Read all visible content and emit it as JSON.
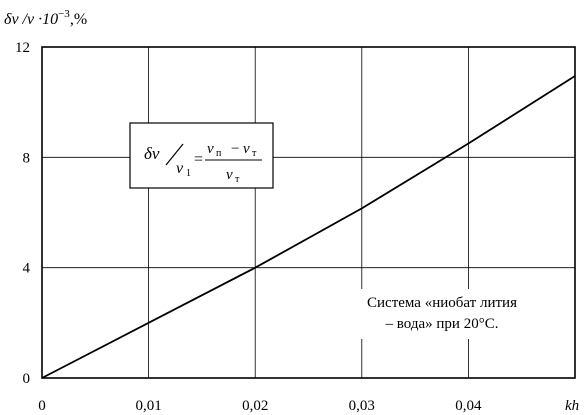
{
  "chart_data": {
    "type": "line",
    "ylabel_parts": {
      "main": "δv /v ·10",
      "exp": "−3",
      "unit": ",%"
    },
    "xlabel": "kh",
    "x_ticks": [
      "0",
      "0,01",
      "0,02",
      "0,03",
      "0,04"
    ],
    "x_tick_values": [
      0,
      0.01,
      0.02,
      0.03,
      0.04
    ],
    "y_ticks": [
      "0",
      "4",
      "8",
      "12"
    ],
    "y_tick_values": [
      0,
      4,
      8,
      12
    ],
    "xlim": [
      0,
      0.05
    ],
    "ylim": [
      0,
      12
    ],
    "grid": true,
    "series": [
      {
        "x": [
          0,
          0.01,
          0.02,
          0.03,
          0.04,
          0.05
        ],
        "y": [
          0,
          2.0,
          4.0,
          6.15,
          8.5,
          10.95
        ]
      }
    ],
    "formula": {
      "num_left": "δv",
      "den_left": "v",
      "den_left_sub": "1",
      "num_right_a": "v",
      "num_right_a_sub": "п",
      "num_right_minus": "−",
      "num_right_b": "v",
      "num_right_b_sub": "т",
      "den_right": "v",
      "den_right_sub": "т"
    },
    "annotation": [
      "Система «ниобат лития",
      "– вода» при 20°C."
    ]
  }
}
